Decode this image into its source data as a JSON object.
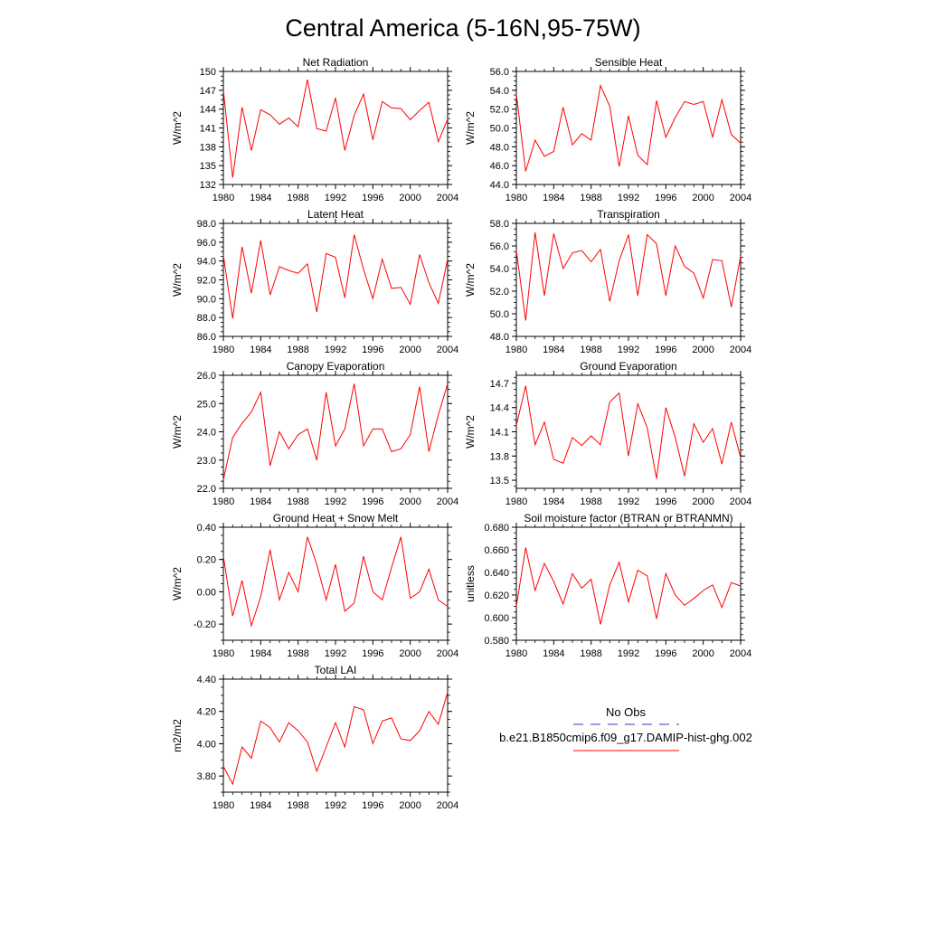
{
  "title": "Central America (5-16N,95-75W)",
  "legend": {
    "obs_label": "No Obs",
    "obs_color": "#3a3ab8",
    "model_label": "b.e21.B1850cmip6.f09_g17.DAMIP-hist-ghg.002",
    "model_color": "#ff0000"
  },
  "chart_data": [
    {
      "type": "line",
      "title": "Net Radiation",
      "ylabel": "W/m^2",
      "ylim": [
        132,
        150
      ],
      "yticks": [
        "132",
        "135",
        "138",
        "141",
        "144",
        "147",
        "150"
      ],
      "ytick_values": [
        132,
        135,
        138,
        141,
        144,
        147,
        150
      ],
      "xlim": [
        1980,
        2004
      ],
      "xticks": [
        "1980",
        "1984",
        "1988",
        "1992",
        "1996",
        "2000",
        "2004"
      ],
      "series": [
        {
          "color": "#ff0000",
          "x": [
            1980,
            1981,
            1982,
            1983,
            1984,
            1985,
            1986,
            1987,
            1988,
            1989,
            1990,
            1991,
            1992,
            1993,
            1994,
            1995,
            1996,
            1997,
            1998,
            1999,
            2000,
            2001,
            2002,
            2003,
            2004
          ],
          "values": [
            147.0,
            133.1,
            144.3,
            137.4,
            143.9,
            143.1,
            141.6,
            142.6,
            141.2,
            148.7,
            140.9,
            140.5,
            145.8,
            137.4,
            143.0,
            146.4,
            139.1,
            145.2,
            144.2,
            144.1,
            142.3,
            143.8,
            145.1,
            138.8,
            142.4
          ]
        }
      ]
    },
    {
      "type": "line",
      "title": "Sensible Heat",
      "ylabel": "W/m^2",
      "ylim": [
        44,
        56
      ],
      "yticks": [
        "44.0",
        "46.0",
        "48.0",
        "50.0",
        "52.0",
        "54.0",
        "56.0"
      ],
      "ytick_values": [
        44,
        46,
        48,
        50,
        52,
        54,
        56
      ],
      "xlim": [
        1980,
        2004
      ],
      "xticks": [
        "1980",
        "1984",
        "1988",
        "1992",
        "1996",
        "2000",
        "2004"
      ],
      "series": [
        {
          "color": "#ff0000",
          "x": [
            1980,
            1981,
            1982,
            1983,
            1984,
            1985,
            1986,
            1987,
            1988,
            1989,
            1990,
            1991,
            1992,
            1993,
            1994,
            1995,
            1996,
            1997,
            1998,
            1999,
            2000,
            2001,
            2002,
            2003,
            2004
          ],
          "values": [
            53.6,
            45.4,
            48.7,
            47.0,
            47.5,
            52.2,
            48.2,
            49.4,
            48.7,
            54.5,
            52.3,
            45.9,
            51.3,
            47.1,
            46.1,
            52.9,
            49.0,
            51.1,
            52.8,
            52.5,
            52.8,
            49.0,
            53.0,
            49.3,
            48.4
          ]
        }
      ]
    },
    {
      "type": "line",
      "title": "Latent Heat",
      "ylabel": "W/m^2",
      "ylim": [
        86,
        98
      ],
      "yticks": [
        "86.0",
        "88.0",
        "90.0",
        "92.0",
        "94.0",
        "96.0",
        "98.0"
      ],
      "ytick_values": [
        86,
        88,
        90,
        92,
        94,
        96,
        98
      ],
      "xlim": [
        1980,
        2004
      ],
      "xticks": [
        "1980",
        "1984",
        "1988",
        "1992",
        "1996",
        "2000",
        "2004"
      ],
      "series": [
        {
          "color": "#ff0000",
          "x": [
            1980,
            1981,
            1982,
            1983,
            1984,
            1985,
            1986,
            1987,
            1988,
            1989,
            1990,
            1991,
            1992,
            1993,
            1994,
            1995,
            1996,
            1997,
            1998,
            1999,
            2000,
            2001,
            2002,
            2003,
            2004
          ],
          "values": [
            94.6,
            87.9,
            95.5,
            90.6,
            96.2,
            90.4,
            93.4,
            93.0,
            92.7,
            93.7,
            88.6,
            94.8,
            94.4,
            90.1,
            96.8,
            93.1,
            90.0,
            94.2,
            91.1,
            91.2,
            89.4,
            94.7,
            91.7,
            89.5,
            94.2
          ]
        }
      ]
    },
    {
      "type": "line",
      "title": "Transpiration",
      "ylabel": "W/m^2",
      "ylim": [
        48,
        58
      ],
      "yticks": [
        "48.0",
        "50.0",
        "52.0",
        "54.0",
        "56.0",
        "58.0"
      ],
      "ytick_values": [
        48,
        50,
        52,
        54,
        56,
        58
      ],
      "xlim": [
        1980,
        2004
      ],
      "xticks": [
        "1980",
        "1984",
        "1988",
        "1992",
        "1996",
        "2000",
        "2004"
      ],
      "series": [
        {
          "color": "#ff0000",
          "x": [
            1980,
            1981,
            1982,
            1983,
            1984,
            1985,
            1986,
            1987,
            1988,
            1989,
            1990,
            1991,
            1992,
            1993,
            1994,
            1995,
            1996,
            1997,
            1998,
            1999,
            2000,
            2001,
            2002,
            2003,
            2004
          ],
          "values": [
            55.6,
            49.4,
            57.2,
            51.6,
            57.1,
            54.0,
            55.4,
            55.6,
            54.6,
            55.7,
            51.1,
            54.7,
            57.0,
            51.6,
            57.0,
            56.2,
            51.6,
            56.0,
            54.2,
            53.6,
            51.4,
            54.8,
            54.7,
            50.6,
            55.1
          ]
        }
      ]
    },
    {
      "type": "line",
      "title": "Canopy Evaporation",
      "ylabel": "W/m^2",
      "ylim": [
        22,
        26
      ],
      "yticks": [
        "22.0",
        "23.0",
        "24.0",
        "25.0",
        "26.0"
      ],
      "ytick_values": [
        22,
        23,
        24,
        25,
        26
      ],
      "xlim": [
        1980,
        2004
      ],
      "xticks": [
        "1980",
        "1984",
        "1988",
        "1992",
        "1996",
        "2000",
        "2004"
      ],
      "series": [
        {
          "color": "#ff0000",
          "x": [
            1980,
            1981,
            1982,
            1983,
            1984,
            1985,
            1986,
            1987,
            1988,
            1989,
            1990,
            1991,
            1992,
            1993,
            1994,
            1995,
            1996,
            1997,
            1998,
            1999,
            2000,
            2001,
            2002,
            2003,
            2004
          ],
          "values": [
            22.3,
            23.8,
            24.3,
            24.7,
            25.4,
            22.8,
            24.0,
            23.4,
            23.9,
            24.1,
            23.0,
            25.4,
            23.5,
            24.1,
            25.7,
            23.5,
            24.1,
            24.1,
            23.3,
            23.4,
            23.9,
            25.6,
            23.3,
            24.6,
            25.7
          ]
        }
      ]
    },
    {
      "type": "line",
      "title": "Ground Evaporation",
      "ylabel": "W/m^2",
      "ylim": [
        13.4,
        14.8
      ],
      "yticks": [
        "13.5",
        "13.8",
        "14.1",
        "14.4",
        "14.7"
      ],
      "ytick_values": [
        13.5,
        13.8,
        14.1,
        14.4,
        14.7
      ],
      "xlim": [
        1980,
        2004
      ],
      "xticks": [
        "1980",
        "1984",
        "1988",
        "1992",
        "1996",
        "2000",
        "2004"
      ],
      "series": [
        {
          "color": "#ff0000",
          "x": [
            1980,
            1981,
            1982,
            1983,
            1984,
            1985,
            1986,
            1987,
            1988,
            1989,
            1990,
            1991,
            1992,
            1993,
            1994,
            1995,
            1996,
            1997,
            1998,
            1999,
            2000,
            2001,
            2002,
            2003,
            2004
          ],
          "values": [
            14.18,
            14.67,
            13.94,
            14.22,
            13.76,
            13.71,
            14.03,
            13.93,
            14.05,
            13.94,
            14.47,
            14.58,
            13.8,
            14.45,
            14.15,
            13.52,
            14.4,
            14.03,
            13.55,
            14.2,
            13.97,
            14.14,
            13.7,
            14.22,
            13.78
          ]
        }
      ]
    },
    {
      "type": "line",
      "title": "Ground Heat + Snow Melt",
      "ylabel": "W/m^2",
      "ylim": [
        -0.3,
        0.4
      ],
      "yticks": [
        "-0.20",
        "0.00",
        "0.20",
        "0.40"
      ],
      "ytick_values": [
        -0.2,
        0.0,
        0.2,
        0.4
      ],
      "xlim": [
        1980,
        2004
      ],
      "xticks": [
        "1980",
        "1984",
        "1988",
        "1992",
        "1996",
        "2000",
        "2004"
      ],
      "series": [
        {
          "color": "#ff0000",
          "x": [
            1980,
            1981,
            1982,
            1983,
            1984,
            1985,
            1986,
            1987,
            1988,
            1989,
            1990,
            1991,
            1992,
            1993,
            1994,
            1995,
            1996,
            1997,
            1998,
            1999,
            2000,
            2001,
            2002,
            2003,
            2004
          ],
          "values": [
            0.22,
            -0.15,
            0.07,
            -0.21,
            -0.03,
            0.26,
            -0.05,
            0.12,
            0.0,
            0.34,
            0.17,
            -0.05,
            0.17,
            -0.12,
            -0.07,
            0.22,
            0.0,
            -0.05,
            0.15,
            0.34,
            -0.04,
            0.0,
            0.14,
            -0.05,
            -0.09
          ]
        }
      ]
    },
    {
      "type": "line",
      "title": "Soil moisture factor (BTRAN or BTRANMN)",
      "ylabel": "unitless",
      "ylim": [
        0.58,
        0.68
      ],
      "yticks": [
        "0.580",
        "0.600",
        "0.620",
        "0.640",
        "0.660",
        "0.680"
      ],
      "ytick_values": [
        0.58,
        0.6,
        0.62,
        0.64,
        0.66,
        0.68
      ],
      "xlim": [
        1980,
        2004
      ],
      "xticks": [
        "1980",
        "1984",
        "1988",
        "1992",
        "1996",
        "2000",
        "2004"
      ],
      "series": [
        {
          "color": "#ff0000",
          "x": [
            1980,
            1981,
            1982,
            1983,
            1984,
            1985,
            1986,
            1987,
            1988,
            1989,
            1990,
            1991,
            1992,
            1993,
            1994,
            1995,
            1996,
            1997,
            1998,
            1999,
            2000,
            2001,
            2002,
            2003,
            2004
          ],
          "values": [
            0.61,
            0.662,
            0.624,
            0.648,
            0.632,
            0.612,
            0.639,
            0.626,
            0.634,
            0.594,
            0.629,
            0.649,
            0.614,
            0.642,
            0.637,
            0.599,
            0.639,
            0.62,
            0.611,
            0.617,
            0.624,
            0.629,
            0.609,
            0.631,
            0.628
          ]
        }
      ]
    },
    {
      "type": "line",
      "title": "Total LAI",
      "ylabel": "m2/m2",
      "ylim": [
        3.7,
        4.4
      ],
      "yticks": [
        "3.80",
        "4.00",
        "4.20",
        "4.40"
      ],
      "ytick_values": [
        3.8,
        4.0,
        4.2,
        4.4
      ],
      "xlim": [
        1980,
        2004
      ],
      "xticks": [
        "1980",
        "1984",
        "1988",
        "1992",
        "1996",
        "2000",
        "2004"
      ],
      "series": [
        {
          "color": "#ff0000",
          "x": [
            1980,
            1981,
            1982,
            1983,
            1984,
            1985,
            1986,
            1987,
            1988,
            1989,
            1990,
            1991,
            1992,
            1993,
            1994,
            1995,
            1996,
            1997,
            1998,
            1999,
            2000,
            2001,
            2002,
            2003,
            2004
          ],
          "values": [
            3.86,
            3.75,
            3.98,
            3.91,
            4.14,
            4.1,
            4.01,
            4.13,
            4.08,
            4.01,
            3.83,
            3.98,
            4.13,
            3.98,
            4.23,
            4.21,
            4.0,
            4.14,
            4.16,
            4.03,
            4.02,
            4.08,
            4.2,
            4.12,
            4.32
          ]
        }
      ]
    }
  ]
}
